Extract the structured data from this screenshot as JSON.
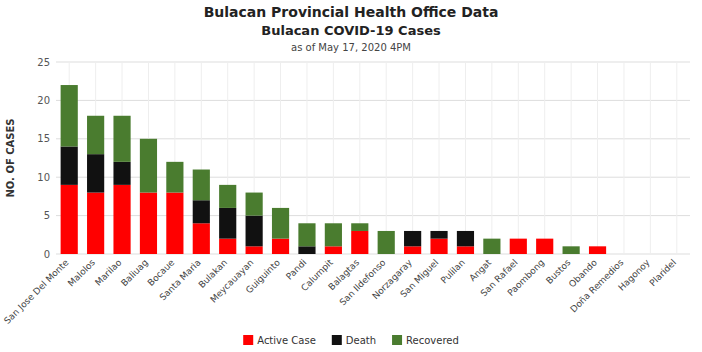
{
  "chart_data": {
    "type": "bar",
    "title": "Bulacan Provincial Health Office Data",
    "subtitle": "Bulacan COVID-19 Cases",
    "annotations": [
      "as of May 17, 2020 4PM"
    ],
    "ylabel": "NO. OF CASES",
    "categories": [
      "San Jose Del Monte",
      "Malolos",
      "Marilao",
      "Baliuag",
      "Bocaue",
      "Santa Maria",
      "Bulakan",
      "Meycauayan",
      "Guiguinto",
      "Pandi",
      "Calumpit",
      "Balagtas",
      "San Ildefonso",
      "Norzagaray",
      "San Miguel",
      "Pulilan",
      "Angat",
      "San Rafael",
      "Paombong",
      "Bustos",
      "Obando",
      "Doña Remedios",
      "Hagonoy",
      "Plaridel"
    ],
    "series": [
      {
        "name": "Active Case",
        "color": "#ff0000",
        "values": [
          9,
          8,
          9,
          8,
          8,
          4,
          2,
          1,
          2,
          0,
          1,
          3,
          0,
          1,
          2,
          1,
          0,
          2,
          2,
          0,
          1,
          0,
          0,
          0
        ]
      },
      {
        "name": "Death",
        "color": "#111111",
        "values": [
          5,
          5,
          3,
          0,
          0,
          3,
          4,
          4,
          0,
          1,
          0,
          0,
          0,
          2,
          1,
          2,
          0,
          0,
          0,
          0,
          0,
          0,
          0,
          0
        ]
      },
      {
        "name": "Recovered",
        "color": "#4a7c2f",
        "values": [
          8,
          5,
          6,
          7,
          4,
          4,
          3,
          3,
          4,
          3,
          3,
          1,
          3,
          0,
          0,
          0,
          2,
          0,
          0,
          1,
          0,
          0,
          0,
          0
        ]
      }
    ],
    "stacked": true,
    "ylim": [
      0,
      25
    ],
    "yticks": [
      0,
      5,
      10,
      15,
      20,
      25
    ],
    "grid": true,
    "legend": "bottom"
  }
}
